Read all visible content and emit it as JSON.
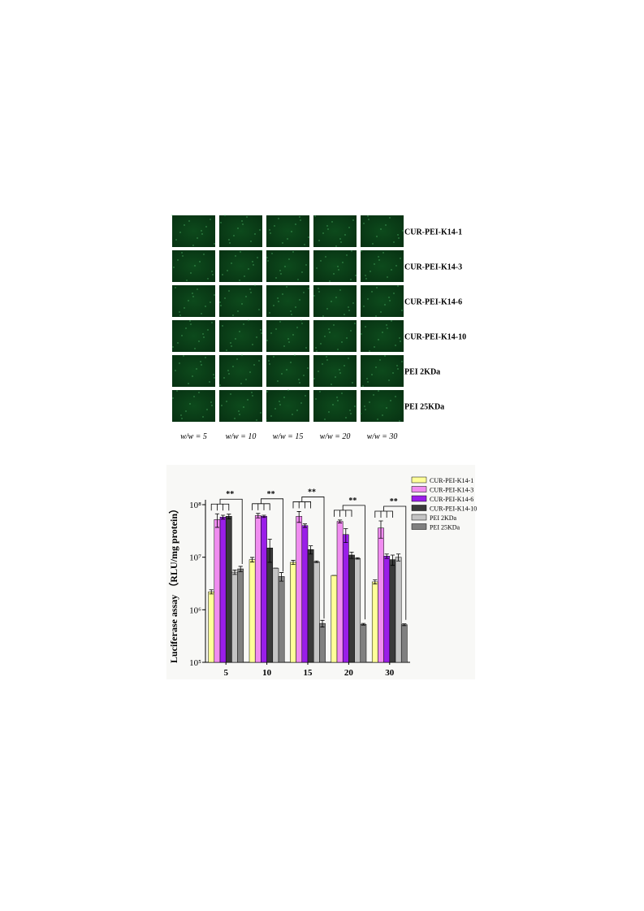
{
  "image_grid": {
    "rows": [
      "CUR-PEI-K14-1",
      "CUR-PEI-K14-3",
      "CUR-PEI-K14-6",
      "CUR-PEI-K14-10",
      "PEI 2KDa",
      "PEI 25KDa"
    ],
    "columns": [
      "w/w = 5",
      "w/w = 10",
      "w/w = 15",
      "w/w = 20",
      "w/w = 30"
    ]
  },
  "chart_data": {
    "type": "bar",
    "y_label": "Luciferase assay （RLU/mg protein）",
    "log_scale": true,
    "categories": [
      "5",
      "10",
      "15",
      "20",
      "30"
    ],
    "ylim": [
      100000,
      100000000
    ],
    "yticks": [
      {
        "value": 100000,
        "label": "10⁵"
      },
      {
        "value": 1000000,
        "label": "10⁶"
      },
      {
        "value": 10000000,
        "label": "10⁷"
      },
      {
        "value": 100000000,
        "label": "10⁸"
      }
    ],
    "legend": "top-right",
    "annotations": [
      "**",
      "**",
      "**",
      "**",
      "**"
    ],
    "series": [
      {
        "name": "CUR-PEI-K14-1",
        "color": "#ffff99",
        "values": [
          2200000,
          9000000,
          8000000,
          4500000,
          3400000
        ],
        "errors": [
          200000,
          900000,
          700000,
          0,
          300000
        ]
      },
      {
        "name": "CUR-PEI-K14-3",
        "color": "#f08cf0",
        "values": [
          52000000,
          62000000,
          60000000,
          48000000,
          36000000
        ],
        "errors": [
          15000000,
          6000000,
          14000000,
          3000000,
          13000000
        ]
      },
      {
        "name": "CUR-PEI-K14-6",
        "color": "#9a1ee8",
        "values": [
          58000000,
          60000000,
          40000000,
          27000000,
          10500000
        ],
        "errors": [
          5000000,
          3000000,
          3000000,
          8000000,
          1000000
        ]
      },
      {
        "name": "CUR-PEI-K14-10",
        "color": "#3a3a3a",
        "values": [
          60000000,
          15000000,
          14000000,
          11000000,
          9000000
        ],
        "errors": [
          6000000,
          7000000,
          2500000,
          1500000,
          2000000
        ]
      },
      {
        "name": "PEI 2KDa",
        "color": "#c4c4c4",
        "values": [
          5200000,
          6200000,
          8200000,
          9500000,
          10000000
        ],
        "errors": [
          500000,
          0,
          300000,
          300000,
          1500000
        ]
      },
      {
        "name": "PEI 25KDa",
        "color": "#808080",
        "values": [
          6000000,
          4300000,
          550000,
          530000,
          520000
        ],
        "errors": [
          700000,
          800000,
          80000,
          20000,
          20000
        ]
      }
    ]
  }
}
